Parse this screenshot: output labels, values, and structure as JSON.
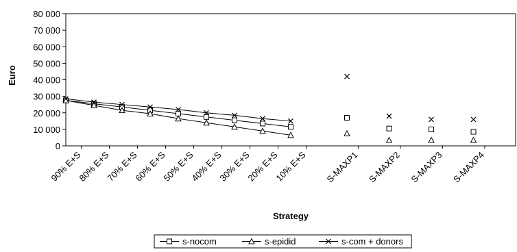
{
  "chart_data": {
    "type": "line",
    "title": "",
    "xlabel": "Strategy",
    "ylabel": "Euro",
    "ylim": [
      0,
      80000
    ],
    "yticks": [
      0,
      10000,
      20000,
      30000,
      40000,
      50000,
      60000,
      70000,
      80000
    ],
    "ytick_labels": [
      "0",
      "10 000",
      "20 000",
      "30 000",
      "40 000",
      "50 000",
      "60 000",
      "70 000",
      "80 000"
    ],
    "categories": [
      "90% E+S",
      "80% E+S",
      "70% E+S",
      "60% E+S",
      "50% E+S",
      "40% E+S",
      "30% E+S",
      "20% E+S",
      "10% E+S",
      "S-MAXP1",
      "S-MAXP2",
      "S-MAXP3",
      "S-MAXP4"
    ],
    "category_positions": [
      0.55,
      1.55,
      2.55,
      3.55,
      4.55,
      5.55,
      6.55,
      7.55,
      8.55,
      10.4,
      11.9,
      13.4,
      14.9
    ],
    "xlim": [
      0,
      16
    ],
    "grid": false,
    "legend_position": "bottom",
    "series": [
      {
        "name": "s-nocom",
        "marker": "square",
        "x": [
          0,
          1,
          2,
          3,
          4,
          5,
          6,
          7,
          8,
          10,
          11.5,
          13,
          14.5
        ],
        "values": [
          27500,
          25500,
          23500,
          21500,
          19500,
          17500,
          15500,
          13500,
          11500,
          17000,
          10500,
          10000,
          8500
        ],
        "connected_points": 9
      },
      {
        "name": "s-epidid",
        "marker": "triangle",
        "x": [
          0,
          1,
          2,
          3,
          4,
          5,
          6,
          7,
          8,
          10,
          11.5,
          13,
          14.5
        ],
        "values": [
          27500,
          24500,
          21500,
          19500,
          16500,
          14000,
          11500,
          9000,
          6500,
          7500,
          3500,
          3500,
          3500
        ],
        "connected_points": 9
      },
      {
        "name": "s-com + donors",
        "marker": "cross",
        "x": [
          0,
          1,
          2,
          3,
          4,
          5,
          6,
          7,
          8,
          10,
          11.5,
          13,
          14.5
        ],
        "values": [
          28500,
          26500,
          25000,
          23500,
          22000,
          20000,
          18500,
          16500,
          15000,
          42000,
          18000,
          16000,
          16000
        ],
        "connected_points": 9
      }
    ]
  }
}
